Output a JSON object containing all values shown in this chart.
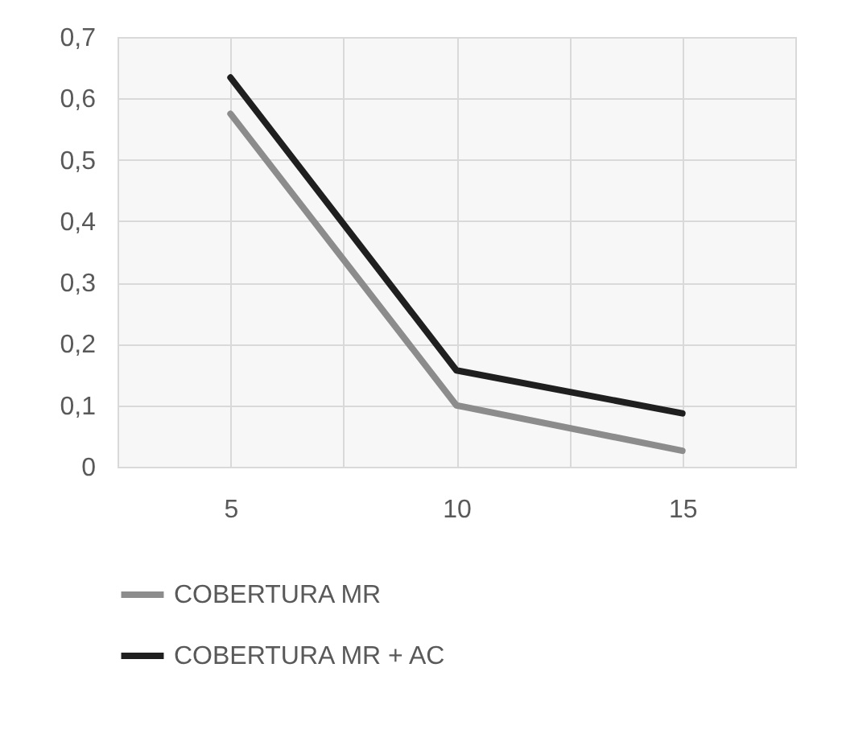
{
  "chart_data": {
    "type": "line",
    "x": [
      5,
      10,
      15
    ],
    "xlim": [
      2.5,
      17.5
    ],
    "xticks": [
      {
        "value": 2.5,
        "label": null
      },
      5,
      {
        "value": 7.5,
        "label": null
      },
      10,
      {
        "value": 12.5,
        "label": null
      },
      15,
      {
        "value": 17.5,
        "label": null
      }
    ],
    "ylim": [
      0,
      0.7
    ],
    "yticks": [
      {
        "value": 0,
        "label": "0"
      },
      {
        "value": 0.1,
        "label": "0,1"
      },
      {
        "value": 0.2,
        "label": "0,2"
      },
      {
        "value": 0.3,
        "label": "0,3"
      },
      {
        "value": 0.4,
        "label": "0,4"
      },
      {
        "value": 0.5,
        "label": "0,5"
      },
      {
        "value": 0.6,
        "label": "0,6"
      },
      {
        "value": 0.7,
        "label": "0,7"
      }
    ],
    "series": [
      {
        "name": "COBERTURA MR",
        "color": "#8c8c8c",
        "values": [
          0.575,
          0.1,
          0.026
        ]
      },
      {
        "name": "COBERTURA MR + AC",
        "color": "#1f1f1f",
        "values": [
          0.634,
          0.157,
          0.087
        ]
      }
    ],
    "grid": true,
    "legend": "bottom",
    "marker": "none",
    "line_style": "solid"
  }
}
